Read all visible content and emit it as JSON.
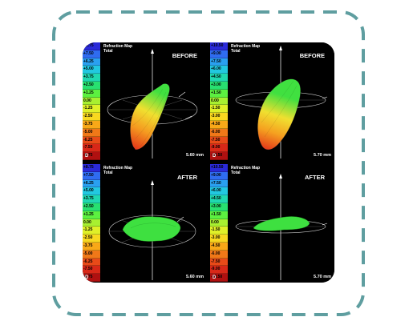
{
  "panels": [
    {
      "title": "Refraction Map",
      "subtitle": "Total",
      "phase": "BEFORE",
      "pupil": "5.60 mm",
      "unit": "D",
      "scale": [
        "+8.75",
        "+7.50",
        "+6.25",
        "+5.00",
        "+3.75",
        "+2.50",
        "+1.25",
        "0.00",
        "-1.25",
        "-2.50",
        "-3.75",
        "-5.00",
        "-6.25",
        "-7.50",
        "-8.75"
      ]
    },
    {
      "title": "Refraction Map",
      "subtitle": "Total",
      "phase": "BEFORE",
      "pupil": "5.70 mm",
      "unit": "D",
      "scale": [
        "+10.50",
        "+9.00",
        "+7.50",
        "+6.00",
        "+4.50",
        "+3.00",
        "+1.50",
        "0.00",
        "-1.50",
        "-3.00",
        "-4.50",
        "-6.00",
        "-7.50",
        "-9.00",
        "-10.50"
      ]
    },
    {
      "title": "Refraction Map",
      "subtitle": "Total",
      "phase": "AFTER",
      "pupil": "5.60 mm",
      "unit": "D",
      "scale": [
        "+8.75",
        "+7.50",
        "+6.25",
        "+5.00",
        "+3.75",
        "+2.50",
        "+1.25",
        "0.00",
        "-1.25",
        "-2.50",
        "-3.75",
        "-5.00",
        "-6.25",
        "-7.50",
        "-8.75"
      ]
    },
    {
      "title": "Refraction Map",
      "subtitle": "Total",
      "phase": "AFTER",
      "pupil": "5.70 mm",
      "unit": "D",
      "scale": [
        "+10.50",
        "+9.00",
        "+7.50",
        "+6.00",
        "+4.50",
        "+3.00",
        "+1.50",
        "0.00",
        "-1.50",
        "-3.00",
        "-4.50",
        "-6.00",
        "-7.50",
        "-9.00",
        "-10.50"
      ]
    }
  ],
  "scale_colors": [
    "#2a2ad8",
    "#2f6cf0",
    "#2aa0f0",
    "#22c8e0",
    "#20d8b0",
    "#28e070",
    "#5cf040",
    "#a8f030",
    "#e0f028",
    "#f8d820",
    "#f8a818",
    "#f07818",
    "#e84a18",
    "#d82818",
    "#b01010"
  ],
  "frame_color": "#5f9ea0",
  "surface_colors": {
    "red": "#e8321a",
    "orange": "#f5a020",
    "yellow": "#f0e030",
    "green": "#3ee040"
  }
}
